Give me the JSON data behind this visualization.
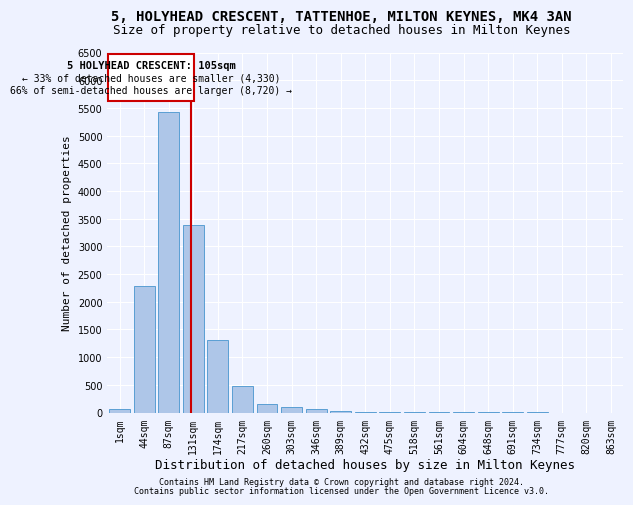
{
  "title1": "5, HOLYHEAD CRESCENT, TATTENHOE, MILTON KEYNES, MK4 3AN",
  "title2": "Size of property relative to detached houses in Milton Keynes",
  "xlabel": "Distribution of detached houses by size in Milton Keynes",
  "ylabel": "Number of detached properties",
  "footnote1": "Contains HM Land Registry data © Crown copyright and database right 2024.",
  "footnote2": "Contains public sector information licensed under the Open Government Licence v3.0.",
  "bar_labels": [
    "1sqm",
    "44sqm",
    "87sqm",
    "131sqm",
    "174sqm",
    "217sqm",
    "260sqm",
    "303sqm",
    "346sqm",
    "389sqm",
    "432sqm",
    "475sqm",
    "518sqm",
    "561sqm",
    "604sqm",
    "648sqm",
    "691sqm",
    "734sqm",
    "777sqm",
    "820sqm",
    "863sqm"
  ],
  "bar_values": [
    60,
    2280,
    5430,
    3380,
    1310,
    480,
    160,
    95,
    65,
    30,
    10,
    5,
    5,
    2,
    2,
    1,
    1,
    1,
    0,
    0,
    0
  ],
  "bar_color": "#aec6e8",
  "bar_edgecolor": "#5a9fd4",
  "ylim": [
    0,
    6500
  ],
  "yticks": [
    0,
    500,
    1000,
    1500,
    2000,
    2500,
    3000,
    3500,
    4000,
    4500,
    5000,
    5500,
    6000,
    6500
  ],
  "property_label": "5 HOLYHEAD CRESCENT: 105sqm",
  "annotation_line1": "← 33% of detached houses are smaller (4,330)",
  "annotation_line2": "66% of semi-detached houses are larger (8,720) →",
  "vline_color": "#cc0000",
  "annotation_box_edgecolor": "#cc0000",
  "background_color": "#eef2ff",
  "grid_color": "#ffffff",
  "title1_fontsize": 10,
  "title2_fontsize": 9,
  "xlabel_fontsize": 9,
  "ylabel_fontsize": 8,
  "tick_fontsize": 7,
  "footnote_fontsize": 6
}
